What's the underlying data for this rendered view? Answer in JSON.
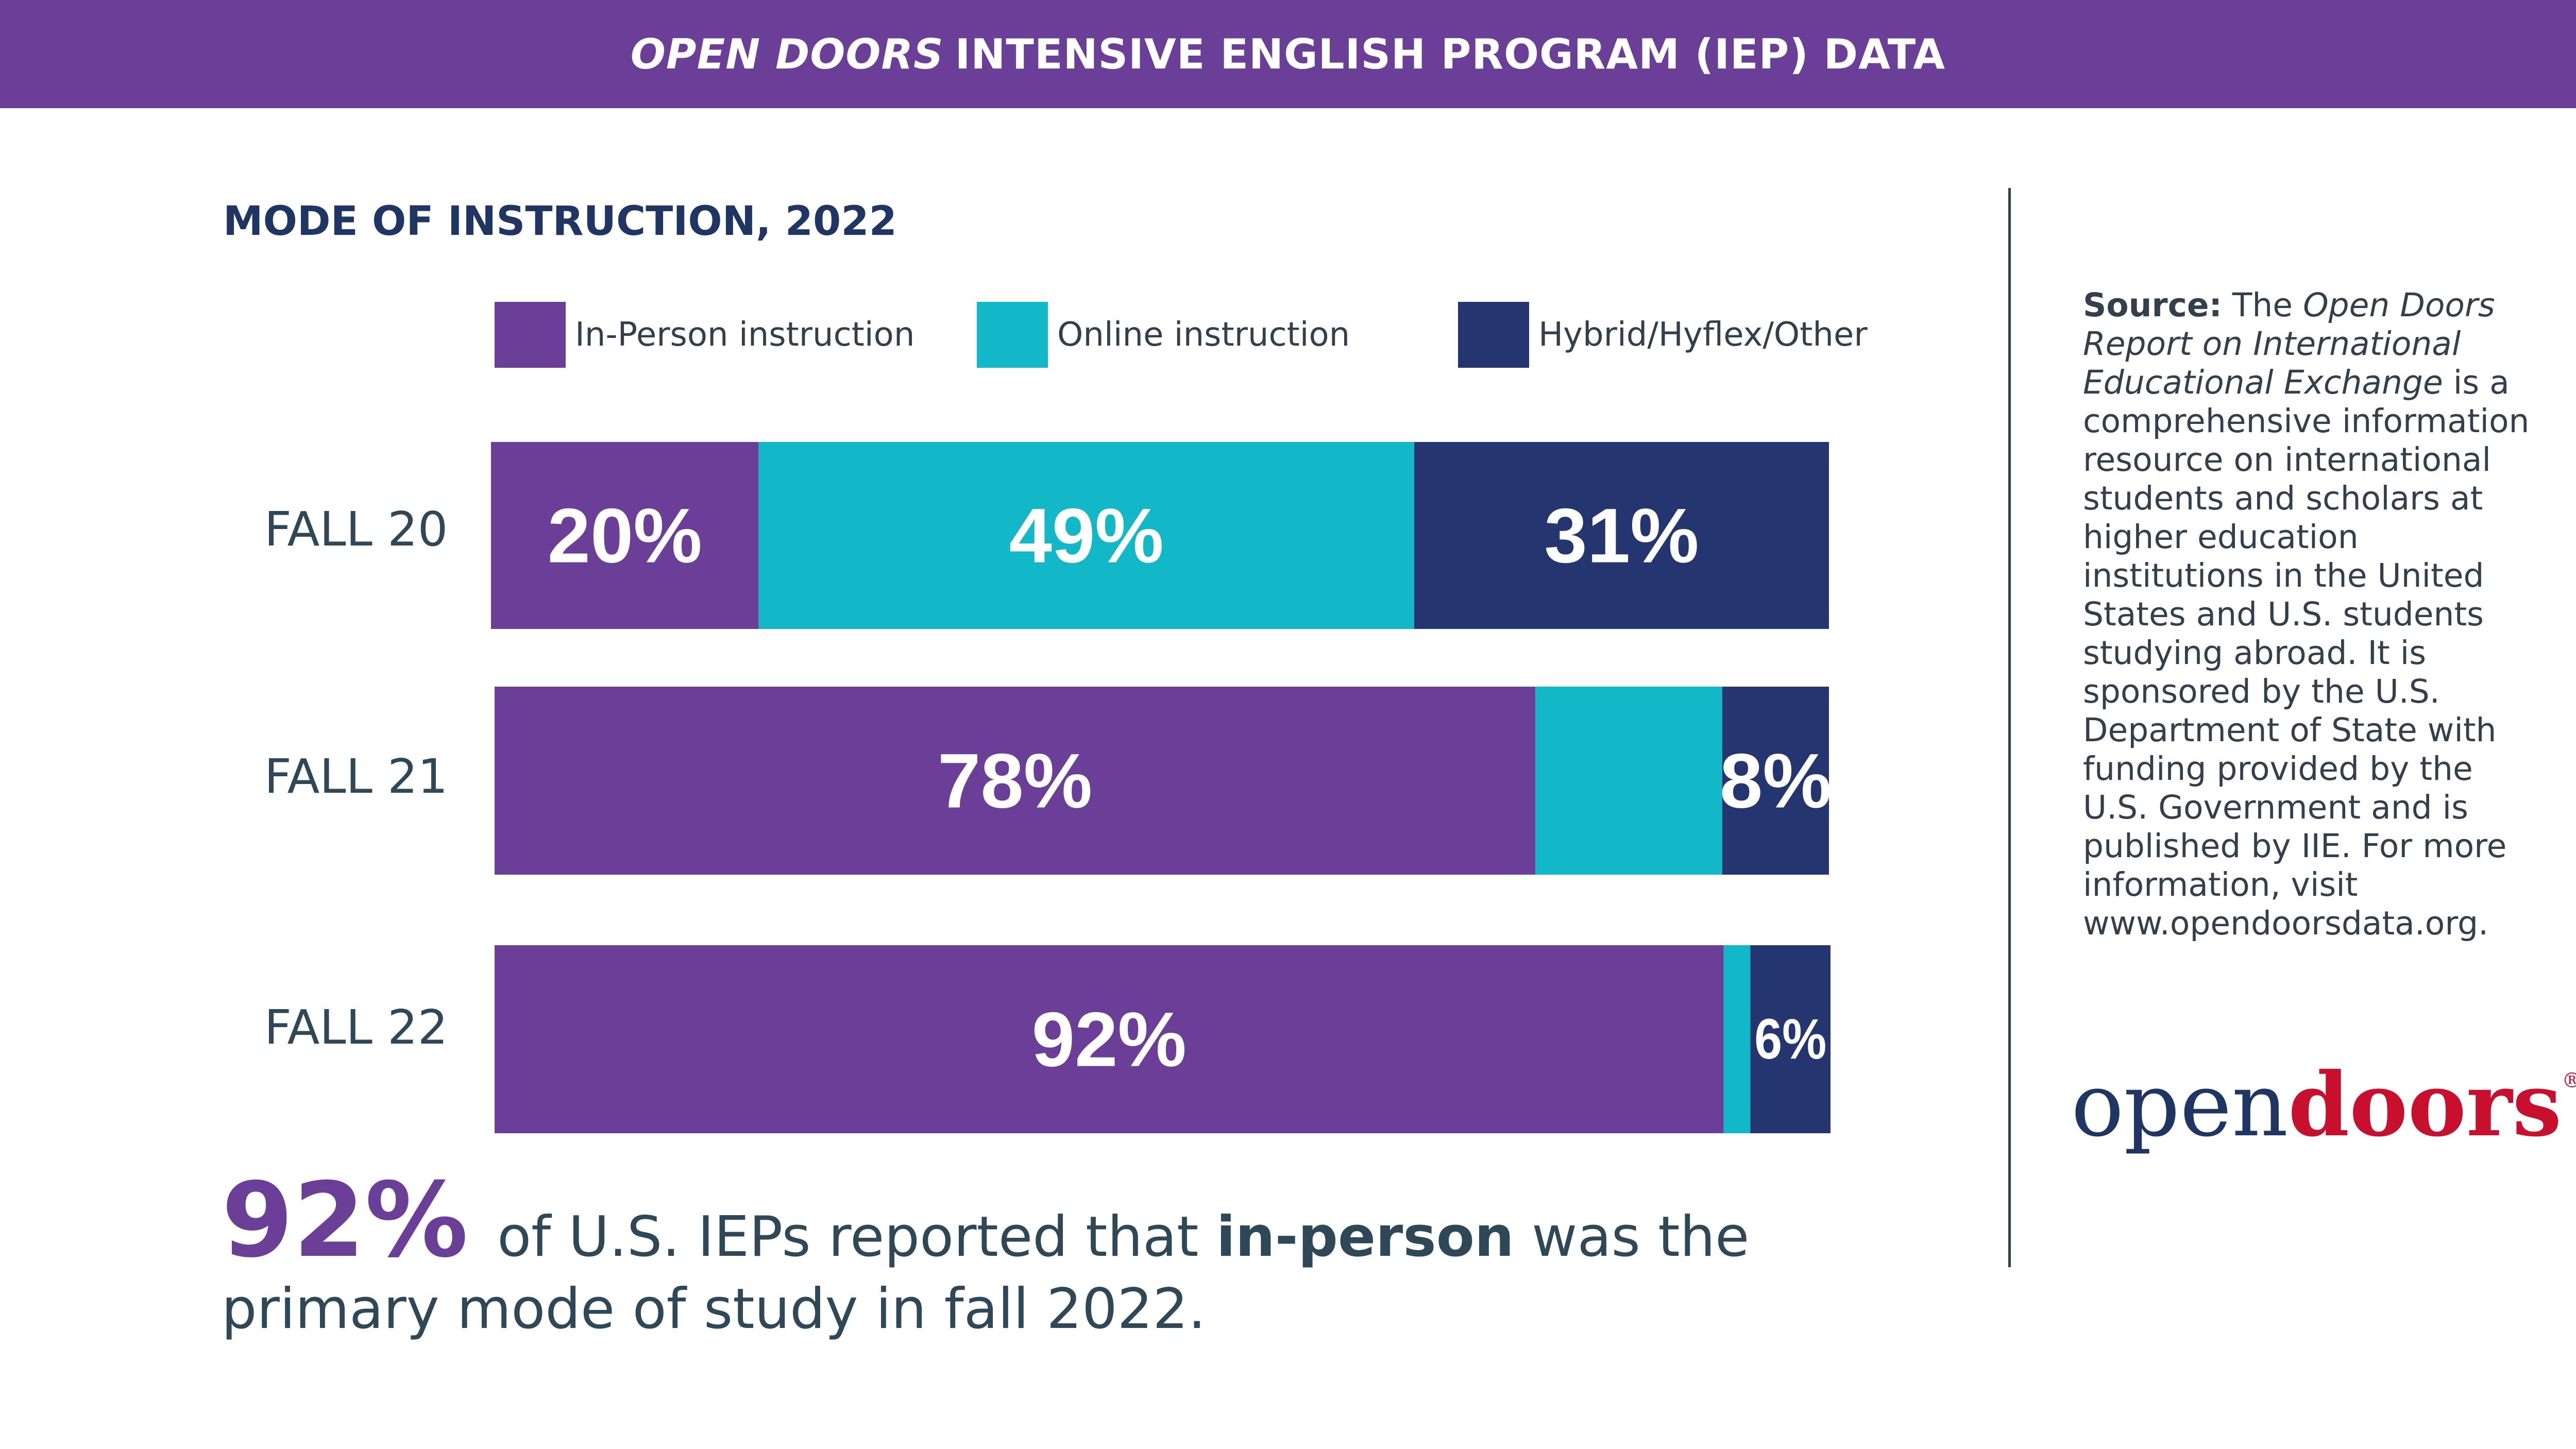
{
  "header": {
    "title_italic": "OPEN DOORS",
    "title_rest": "INTENSIVE ENGLISH PROGRAM (IEP) DATA"
  },
  "colors": {
    "in_person": "#6b3f98",
    "online": "#12b8c7",
    "hybrid": "#24356f"
  },
  "chart_data": {
    "type": "bar",
    "orientation": "horizontal",
    "stacked": true,
    "normalized": true,
    "subtitle": "MODE OF INSTRUCTION, 2022",
    "categories": [
      "FALL 20",
      "FALL 21",
      "FALL 22"
    ],
    "series": [
      {
        "name": "In-Person instruction",
        "color": "#6b3f98",
        "values": [
          20,
          78,
          92
        ],
        "labels": [
          "20%",
          "78%",
          "92%"
        ]
      },
      {
        "name": "Online instruction",
        "color": "#12b8c7",
        "values": [
          49,
          14,
          2
        ],
        "labels": [
          "49%",
          "",
          ""
        ]
      },
      {
        "name": "Hybrid/Hyflex/Other",
        "color": "#24356f",
        "values": [
          31,
          8,
          6
        ],
        "labels": [
          "31%",
          "8%",
          "6%"
        ]
      }
    ],
    "xlim": [
      0,
      100
    ],
    "legend": "top"
  },
  "takeaway": {
    "stat": "92%",
    "text_before": "of U.S. IEPs reported that",
    "bold": "in-person",
    "text_after": "was the primary mode of study in fall 2022."
  },
  "source": {
    "label": "Source:",
    "text_1": "The",
    "italic": "Open Doors Report on International Educational Exchange",
    "text_2": "is a comprehensive information resource on international students and scholars at higher education institutions in the United States and U.S. students studying abroad. It is sponsored by the U.S. Department of State with funding provided by the U.S. Government and is published by IIE. For more information, visit www.opendoorsdata.org."
  },
  "logo": {
    "part1": "open",
    "part2": "doors",
    "mark": "®"
  }
}
